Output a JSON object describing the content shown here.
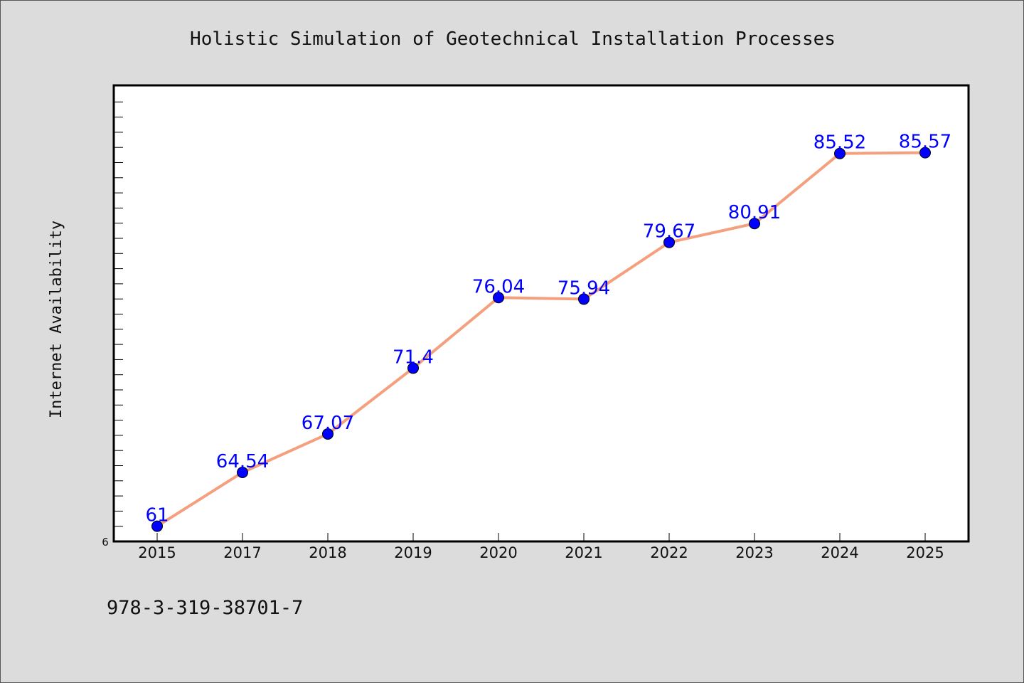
{
  "chart_data": {
    "type": "line",
    "title": "Holistic Simulation of Geotechnical Installation Processes",
    "ylabel": "Internet Availability",
    "xlabel": "",
    "categories": [
      "2015",
      "2017",
      "2018",
      "2019",
      "2020",
      "2021",
      "2022",
      "2023",
      "2024",
      "2025"
    ],
    "series": [
      {
        "values": [
          61,
          64.54,
          67.07,
          71.4,
          76.04,
          75.94,
          79.67,
          80.91,
          85.52,
          85.57
        ]
      }
    ],
    "data_labels": [
      "61",
      "64.54",
      "67.07",
      "71.4",
      "76.04",
      "75.94",
      "79.67",
      "80.91",
      "85.52",
      "85.57"
    ],
    "ylim": [
      60,
      90
    ],
    "yticks": [
      "6"
    ],
    "grid": false,
    "line_color": "#f4a07f",
    "marker_color": "#0000ff",
    "label_color": "#0000ff"
  },
  "footer": {
    "isbn": "978-3-319-38701-7"
  }
}
